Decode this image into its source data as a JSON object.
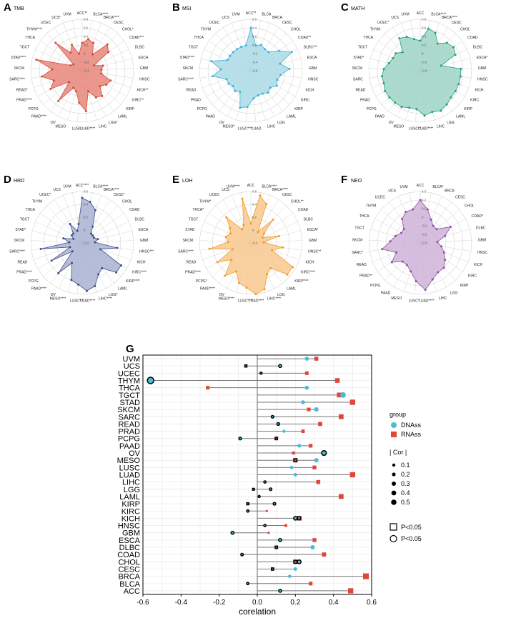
{
  "chart_data": [
    {
      "id": "A",
      "title": "TMB",
      "color": "#e8867a",
      "stroke": "#d24b3e",
      "type": "radar",
      "rings": [
        "0.8",
        "0.6",
        "0.4",
        "0.2",
        "0",
        "-0.2",
        "-0.4"
      ],
      "range": [
        -0.4,
        0.8
      ],
      "labels": [
        "ACC**",
        "BLCA****",
        "BRCA****",
        "CESC",
        "CHOL*",
        "COAD***",
        "DLBC",
        "ESCA",
        "GBM",
        "HNSC",
        "KICH**",
        "KIRC**",
        "KIRP",
        "LAML",
        "LGG*",
        "LIHC",
        "LUAD****",
        "LUSC",
        "MESO",
        "OV",
        "PAAD****",
        "PCPG",
        "PRAD****",
        "READ*",
        "SARC****",
        "SKCM",
        "STAD****",
        "TGCT",
        "THCA",
        "THYM****",
        "UCEC",
        "UCS*",
        "UVM"
      ],
      "values": [
        0.25,
        0.35,
        0.3,
        0.05,
        0.45,
        0.35,
        -0.1,
        0.1,
        0.05,
        0.05,
        0.3,
        0.25,
        0.15,
        0.35,
        0.3,
        0.1,
        0.55,
        0.35,
        0.1,
        0.05,
        0.5,
        0.0,
        0.45,
        0.3,
        0.55,
        0.3,
        0.7,
        -0.1,
        -0.15,
        0.5,
        0.1,
        0.25,
        0.0
      ]
    },
    {
      "id": "B",
      "title": "MSI",
      "color": "#aadbe8",
      "stroke": "#3eb1d6",
      "type": "radar",
      "rings": [
        "0.6",
        "0.4",
        "0.2",
        "0",
        "-0.2",
        "-0.4",
        "-0.6"
      ],
      "range": [
        -0.6,
        0.6
      ],
      "labels": [
        "ACC**",
        "BLCA",
        "BRCA",
        "CESC",
        "CHOL",
        "COAD**",
        "DLBC***",
        "ESCA",
        "GBM",
        "HNSC",
        "KICH",
        "KIRC",
        "KIRP",
        "LAML",
        "LGG",
        "LIHC",
        "LUAD",
        "LUSC****",
        "MESO*",
        "OV",
        "PAAD",
        "PCPG",
        "PRAD",
        "READ",
        "SARC****",
        "SKCM",
        "STAD****",
        "TGCT",
        "THCA",
        "THYM",
        "UCEC",
        "UCS",
        "UVM"
      ],
      "values": [
        0.4,
        0.0,
        0.05,
        0.0,
        0.0,
        0.2,
        0.45,
        0.1,
        0.3,
        0.1,
        0.05,
        0.1,
        0.0,
        0.05,
        0.0,
        0.0,
        0.05,
        0.25,
        0.3,
        -0.05,
        0.0,
        -0.05,
        0.0,
        0.0,
        0.3,
        0.1,
        0.35,
        0.0,
        0.0,
        0.0,
        0.0,
        0.0,
        0.0
      ]
    },
    {
      "id": "C",
      "title": "MATH",
      "color": "#9ed5c4",
      "stroke": "#1fa07d",
      "type": "radar",
      "rings": [
        "0.8",
        "0.6",
        "0.4",
        "0.2",
        "0",
        "-0.2",
        "-0.4"
      ],
      "range": [
        -0.4,
        0.8
      ],
      "labels": [
        "ACC",
        "BLCA****",
        "BRCA****",
        "CESC",
        "CHOL",
        "COAD",
        "DLBC",
        "ESCA*",
        "GBM",
        "HNSC",
        "KICH",
        "KIRC",
        "KIRP",
        "LAML",
        "LGG",
        "LIHC",
        "LUAD****",
        "LUSC**",
        "MESO",
        "OV",
        "PAAD",
        "PCPG",
        "PRAD",
        "READ",
        "SARC",
        "SKCM",
        "STAD*",
        "TGCT",
        "THCA",
        "THYM",
        "UCEC*",
        "UCS",
        "UVM"
      ],
      "values": [
        0.3,
        0.6,
        0.55,
        0.35,
        0.5,
        0.55,
        0.5,
        0.1,
        0.55,
        0.55,
        0.55,
        0.55,
        0.55,
        0.6,
        0.65,
        0.6,
        0.65,
        0.5,
        0.5,
        0.55,
        0.55,
        0.55,
        0.55,
        0.5,
        0.5,
        0.45,
        0.35,
        0.3,
        0.3,
        0.2,
        0.5,
        0.45,
        0.35
      ]
    },
    {
      "id": "D",
      "title": "HRD",
      "color": "#a9b1d1",
      "stroke": "#3f4f8c",
      "type": "radar",
      "rings": [
        "0.6",
        "0.4",
        "0.2",
        "0",
        "-0.2"
      ],
      "range": [
        -0.2,
        0.6
      ],
      "labels": [
        "ACC****",
        "BLCA****",
        "BRCA****",
        "CESC*",
        "CHOL",
        "COAD",
        "DLBC",
        "ESCA",
        "GBM",
        "HNSC***",
        "KICH",
        "KIRC****",
        "KIRP****",
        "LAML",
        "LGG*",
        "LIHC****",
        "LUAD****",
        "LUSC***",
        "MESO****",
        "OV",
        "PAAD****",
        "PCPG",
        "PRAD****",
        "READ",
        "SARC****",
        "SKCM",
        "STAD*",
        "TGCT",
        "THCA",
        "THYM",
        "UCEC*",
        "UCS",
        "UVM"
      ],
      "values": [
        0.5,
        0.45,
        0.35,
        0.1,
        0.0,
        0.0,
        0.0,
        0.05,
        0.0,
        0.35,
        0.1,
        0.5,
        0.5,
        0.3,
        0.35,
        0.5,
        0.55,
        0.45,
        0.4,
        0.15,
        0.4,
        0.0,
        0.35,
        0.0,
        0.45,
        0.0,
        0.1,
        -0.05,
        0.0,
        0.0,
        0.15,
        0.0,
        0.1
      ]
    },
    {
      "id": "E",
      "title": "LOH",
      "color": "#f8c98f",
      "stroke": "#f39a24",
      "type": "radar",
      "rings": [
        "0.6",
        "0.4",
        "0.2",
        "0",
        "-0.2"
      ],
      "range": [
        -0.2,
        0.6
      ],
      "labels": [
        "ACC",
        "BLCA****",
        "BRCA****",
        "CESC",
        "CHOL**",
        "COAD",
        "DLBC",
        "ESCA*",
        "GBM",
        "HNSC**",
        "KICH",
        "KIRC****",
        "KIRP****",
        "LAML",
        "LGG",
        "LIHC****",
        "LUAD****",
        "LUSC****",
        "MESO****",
        "OV",
        "PAAD****",
        "PCPG*",
        "PRAD****",
        "READ",
        "SARC****",
        "SKCM",
        "STAD",
        "TGCT",
        "THCA*",
        "THYM*",
        "UCEC",
        "UCS",
        "UVM****"
      ],
      "values": [
        0.1,
        0.55,
        0.45,
        0.0,
        0.3,
        0.05,
        0.0,
        0.25,
        0.0,
        0.3,
        0.15,
        0.55,
        0.55,
        0.3,
        0.35,
        0.55,
        0.6,
        0.5,
        0.45,
        0.3,
        0.45,
        0.2,
        0.4,
        0.1,
        0.45,
        0.15,
        0.2,
        0.15,
        0.2,
        0.35,
        0.05,
        0.1,
        0.5
      ]
    },
    {
      "id": "F",
      "title": "NEO",
      "color": "#cfb3d8",
      "stroke": "#8e4fa6",
      "type": "radar",
      "rings": [
        "0.3",
        "0.2",
        "0.1",
        "0",
        "-0.1",
        "-0.2",
        "-0.3"
      ],
      "range": [
        -0.3,
        0.3
      ],
      "labels": [
        "ACC",
        "BLCA*",
        "BRCA",
        "CESC",
        "CHOL",
        "COAD*",
        "DLBC",
        "GBM",
        "HNSC",
        "KICH",
        "KIRC",
        "KIRP",
        "LGG",
        "LIHC",
        "LUAD****",
        "LUSC*",
        "MESO",
        "PAAD",
        "PCPG",
        "PRAD**",
        "READ",
        "SARC*",
        "SKCM",
        "TGCT",
        "THCA",
        "THYM",
        "UCEC",
        "UCS",
        "UVM"
      ],
      "values": [
        0.2,
        0.1,
        0.0,
        -0.05,
        -0.05,
        0.1,
        0.0,
        -0.1,
        -0.05,
        0.0,
        0.05,
        0.1,
        0.1,
        0.15,
        0.25,
        0.15,
        0.05,
        0.0,
        0.0,
        0.1,
        0.0,
        0.15,
        0.05,
        0.0,
        -0.05,
        -0.05,
        0.05,
        0.1,
        0.1
      ]
    },
    {
      "id": "G",
      "type": "lollipop",
      "xlabel": "corelation",
      "xlim": [
        -0.6,
        0.6
      ],
      "xticks": [
        "-0.6",
        "-0.4",
        "-0.2",
        "0.0",
        "0.2",
        "0.4",
        "0.6"
      ],
      "xtick_values": [
        -0.6,
        -0.4,
        -0.2,
        0.0,
        0.2,
        0.4,
        0.6
      ],
      "categories": [
        "UVM",
        "UCS",
        "UCEC",
        "THYM",
        "THCA",
        "TGCT",
        "STAD",
        "SKCM",
        "SARC",
        "READ",
        "PRAD",
        "PCPG",
        "PAAD",
        "OV",
        "MESO",
        "LUSC",
        "LUAD",
        "LIHC",
        "LGG",
        "LAML",
        "KIRP",
        "KIRC",
        "KICH",
        "HNSC",
        "GBM",
        "ESCA",
        "DLBC",
        "COAD",
        "CHOL",
        "CESC",
        "BRCA",
        "BLCA",
        "ACC"
      ],
      "series": [
        {
          "name": "DNAss",
          "color": "#4bbcd6",
          "shape": "circle",
          "values": [
            0.26,
            0.12,
            0.02,
            -0.56,
            0.26,
            0.45,
            0.24,
            0.31,
            0.08,
            0.11,
            0.14,
            -0.09,
            0.22,
            0.35,
            0.31,
            0.18,
            0.2,
            0.04,
            0.07,
            0.01,
            0.09,
            -0.05,
            0.2,
            0.04,
            -0.13,
            0.12,
            0.29,
            -0.08,
            0.22,
            0.2,
            0.17,
            -0.05,
            0.12
          ],
          "sig": [
            false,
            true,
            true,
            true,
            false,
            false,
            false,
            false,
            true,
            true,
            false,
            true,
            false,
            true,
            false,
            false,
            false,
            true,
            true,
            true,
            true,
            true,
            true,
            true,
            true,
            true,
            false,
            true,
            true,
            false,
            false,
            true,
            true
          ],
          "cor": [
            0.26,
            0.12,
            0.02,
            0.56,
            0.26,
            0.45,
            0.24,
            0.31,
            0.08,
            0.11,
            0.14,
            0.09,
            0.22,
            0.35,
            0.31,
            0.18,
            0.2,
            0.04,
            0.07,
            0.01,
            0.09,
            0.05,
            0.2,
            0.04,
            0.13,
            0.12,
            0.29,
            0.08,
            0.22,
            0.2,
            0.17,
            0.05,
            0.12
          ]
        },
        {
          "name": "RNAss",
          "color": "#e0473a",
          "shape": "square",
          "values": [
            0.31,
            -0.06,
            0.26,
            0.42,
            -0.26,
            0.43,
            0.5,
            0.27,
            0.44,
            0.33,
            0.24,
            0.1,
            0.28,
            0.19,
            0.2,
            0.3,
            0.5,
            0.32,
            -0.02,
            0.44,
            -0.05,
            0.05,
            0.22,
            0.15,
            0.06,
            0.3,
            0.1,
            0.35,
            0.2,
            0.08,
            0.57,
            0.28,
            0.49
          ],
          "sig": [
            false,
            true,
            false,
            false,
            false,
            false,
            false,
            false,
            false,
            false,
            false,
            true,
            false,
            false,
            true,
            false,
            false,
            false,
            true,
            false,
            true,
            false,
            true,
            false,
            false,
            false,
            true,
            false,
            true,
            true,
            false,
            false,
            false
          ],
          "cor": [
            0.31,
            0.06,
            0.26,
            0.42,
            0.26,
            0.43,
            0.5,
            0.27,
            0.44,
            0.33,
            0.24,
            0.1,
            0.28,
            0.19,
            0.2,
            0.3,
            0.5,
            0.32,
            0.02,
            0.44,
            0.05,
            0.05,
            0.22,
            0.15,
            0.06,
            0.3,
            0.1,
            0.35,
            0.2,
            0.08,
            0.57,
            0.28,
            0.49
          ]
        }
      ],
      "legend": {
        "group_title": "group",
        "cor_title": "| Cor |",
        "cor_levels": [
          "0.1",
          "0.2",
          "0.3",
          "0.4",
          "0.5"
        ],
        "cor_values": [
          0.1,
          0.2,
          0.3,
          0.4,
          0.5
        ],
        "shape_labels": [
          "P<0.05",
          "P<0.05"
        ]
      }
    }
  ]
}
